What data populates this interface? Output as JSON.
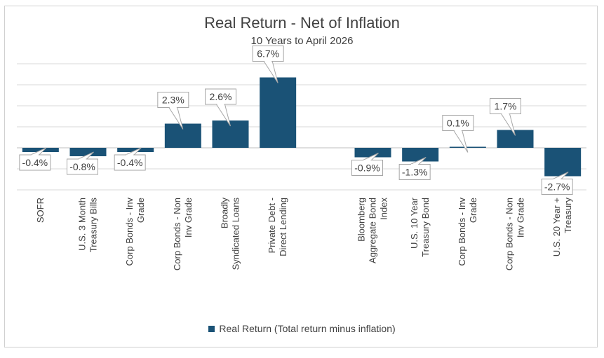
{
  "chart_data": {
    "type": "bar",
    "title": "Real Return - Net of Inflation",
    "subtitle": "10 Years to April 2026",
    "categories": [
      "SOFR",
      "U.S. 3 Month Treasury Bills",
      "Corp Bonds - Inv Grade",
      "Corp Bonds - Non Inv Grade",
      "Broadly Syndicated Loans",
      "Private Debt - Direct Lending",
      "",
      "Bloomberg Aggregate Bond Index",
      "U.S. 10 Year Treasury Bond",
      "Corp Bonds - Inv Grade",
      "Corp Bonds - Non Inv Grade",
      "U.S. 20 Year + Treasury"
    ],
    "series": [
      {
        "name": "Real Return (Total return minus inflation)",
        "values": [
          -0.4,
          -0.8,
          -0.4,
          2.3,
          2.6,
          6.7,
          null,
          -0.9,
          -1.3,
          0.1,
          1.7,
          -2.7
        ],
        "labels": [
          "-0.4%",
          "-0.8%",
          "-0.4%",
          "2.3%",
          "2.6%",
          "6.7%",
          "",
          "-0.9%",
          "-1.3%",
          "0.1%",
          "1.7%",
          "-2.7%"
        ]
      }
    ],
    "ylim": [
      -4,
      8
    ],
    "grid": true,
    "legend": "bottom",
    "colors": {
      "bar": "#1a5276",
      "grid": "#d9d9d9",
      "text": "#404040"
    }
  }
}
